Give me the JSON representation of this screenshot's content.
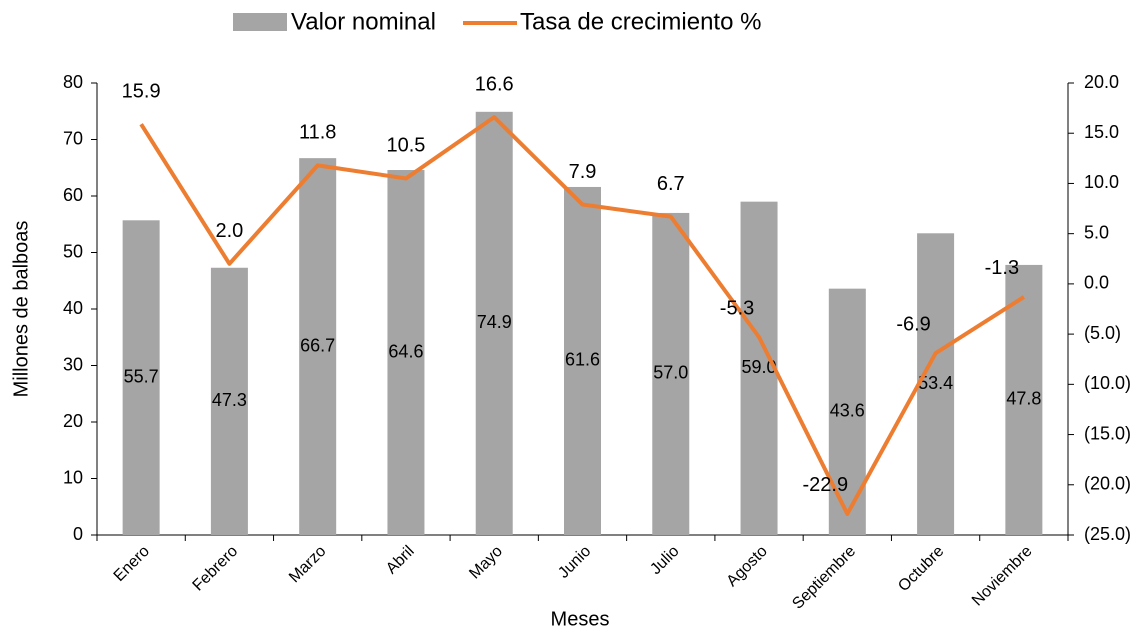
{
  "chart_data": {
    "type": "bar_line",
    "xlabel": "Meses",
    "ylabel": "Millones de balboas",
    "categories": [
      "Enero",
      "Febrero",
      "Marzo",
      "Abril",
      "Mayo",
      "Junio",
      "Julio",
      "Agosto",
      "Septiembre",
      "Octubre",
      "Noviembre"
    ],
    "series": [
      {
        "name": "Valor nominal",
        "type": "bar",
        "color": "#a5a5a5",
        "values": [
          55.7,
          47.3,
          66.7,
          64.6,
          74.9,
          61.6,
          57.0,
          59.0,
          43.6,
          53.4,
          47.8
        ],
        "value_labels": [
          "55.7",
          "47.3",
          "66.7",
          "64.6",
          "74.9",
          "61.6",
          "57.0",
          "59.0",
          "43.6",
          "53.4",
          "47.8"
        ]
      },
      {
        "name": "Tasa de crecimiento %",
        "type": "line",
        "axis": "y2",
        "color": "#ed7d31",
        "values": [
          15.9,
          2.0,
          11.8,
          10.5,
          16.6,
          7.9,
          6.7,
          -5.3,
          -22.9,
          -6.9,
          -1.3
        ],
        "value_labels": [
          "15.9",
          "2.0",
          "11.8",
          "10.5",
          "16.6",
          "7.9",
          "6.7",
          "-5.3",
          "-22.9",
          "-6.9",
          "-1.3"
        ]
      }
    ],
    "negative_color": "#ff0000",
    "ylim": [
      0,
      80
    ],
    "yticks": [
      0,
      10,
      20,
      30,
      40,
      50,
      60,
      70,
      80
    ],
    "y2lim": [
      -25,
      20
    ],
    "y2ticks": [
      {
        "value": -25,
        "label": "(25.0)"
      },
      {
        "value": -20,
        "label": "(20.0)"
      },
      {
        "value": -15,
        "label": "(15.0)"
      },
      {
        "value": -10,
        "label": "(10.0)"
      },
      {
        "value": -5,
        "label": "(5.0)"
      },
      {
        "value": 0,
        "label": "0.0"
      },
      {
        "value": 5,
        "label": "5.0"
      },
      {
        "value": 10,
        "label": "10.0"
      },
      {
        "value": 15,
        "label": "15.0"
      },
      {
        "value": 20,
        "label": "20.0"
      }
    ]
  }
}
